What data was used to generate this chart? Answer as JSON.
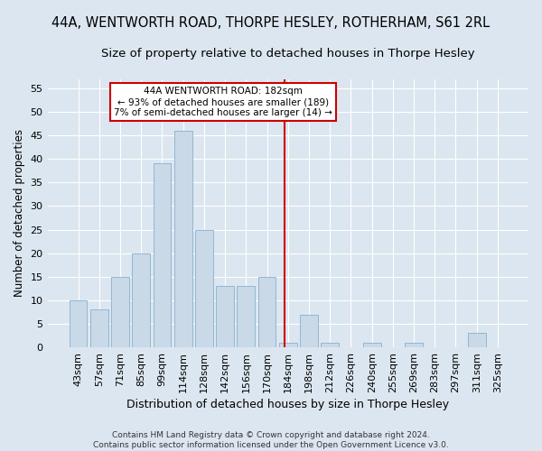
{
  "title": "44A, WENTWORTH ROAD, THORPE HESLEY, ROTHERHAM, S61 2RL",
  "subtitle": "Size of property relative to detached houses in Thorpe Hesley",
  "xlabel": "Distribution of detached houses by size in Thorpe Hesley",
  "ylabel": "Number of detached properties",
  "footer_line1": "Contains HM Land Registry data © Crown copyright and database right 2024.",
  "footer_line2": "Contains public sector information licensed under the Open Government Licence v3.0.",
  "categories": [
    "43sqm",
    "57sqm",
    "71sqm",
    "85sqm",
    "99sqm",
    "114sqm",
    "128sqm",
    "142sqm",
    "156sqm",
    "170sqm",
    "184sqm",
    "198sqm",
    "212sqm",
    "226sqm",
    "240sqm",
    "255sqm",
    "269sqm",
    "283sqm",
    "297sqm",
    "311sqm",
    "325sqm"
  ],
  "values": [
    10,
    8,
    15,
    20,
    39,
    46,
    25,
    13,
    13,
    15,
    1,
    7,
    1,
    0,
    1,
    0,
    1,
    0,
    0,
    3,
    0
  ],
  "bar_color": "#c9d9e8",
  "bar_edge_color": "#8ab0cc",
  "vline_x": 9.85,
  "vline_color": "#cc0000",
  "annotation_line1": "44A WENTWORTH ROAD: 182sqm",
  "annotation_line2": "← 93% of detached houses are smaller (189)",
  "annotation_line3": "7% of semi-detached houses are larger (14) →",
  "annotation_box_facecolor": "#ffffff",
  "annotation_box_edgecolor": "#cc0000",
  "ylim": [
    0,
    57
  ],
  "yticks": [
    0,
    5,
    10,
    15,
    20,
    25,
    30,
    35,
    40,
    45,
    50,
    55
  ],
  "background_color": "#dce6f0",
  "plot_background_color": "#dce6f0",
  "grid_color": "#ffffff",
  "title_fontsize": 10.5,
  "subtitle_fontsize": 9.5,
  "xlabel_fontsize": 9,
  "ylabel_fontsize": 8.5,
  "tick_fontsize": 8,
  "footer_fontsize": 6.5,
  "annotation_fontsize": 7.5
}
